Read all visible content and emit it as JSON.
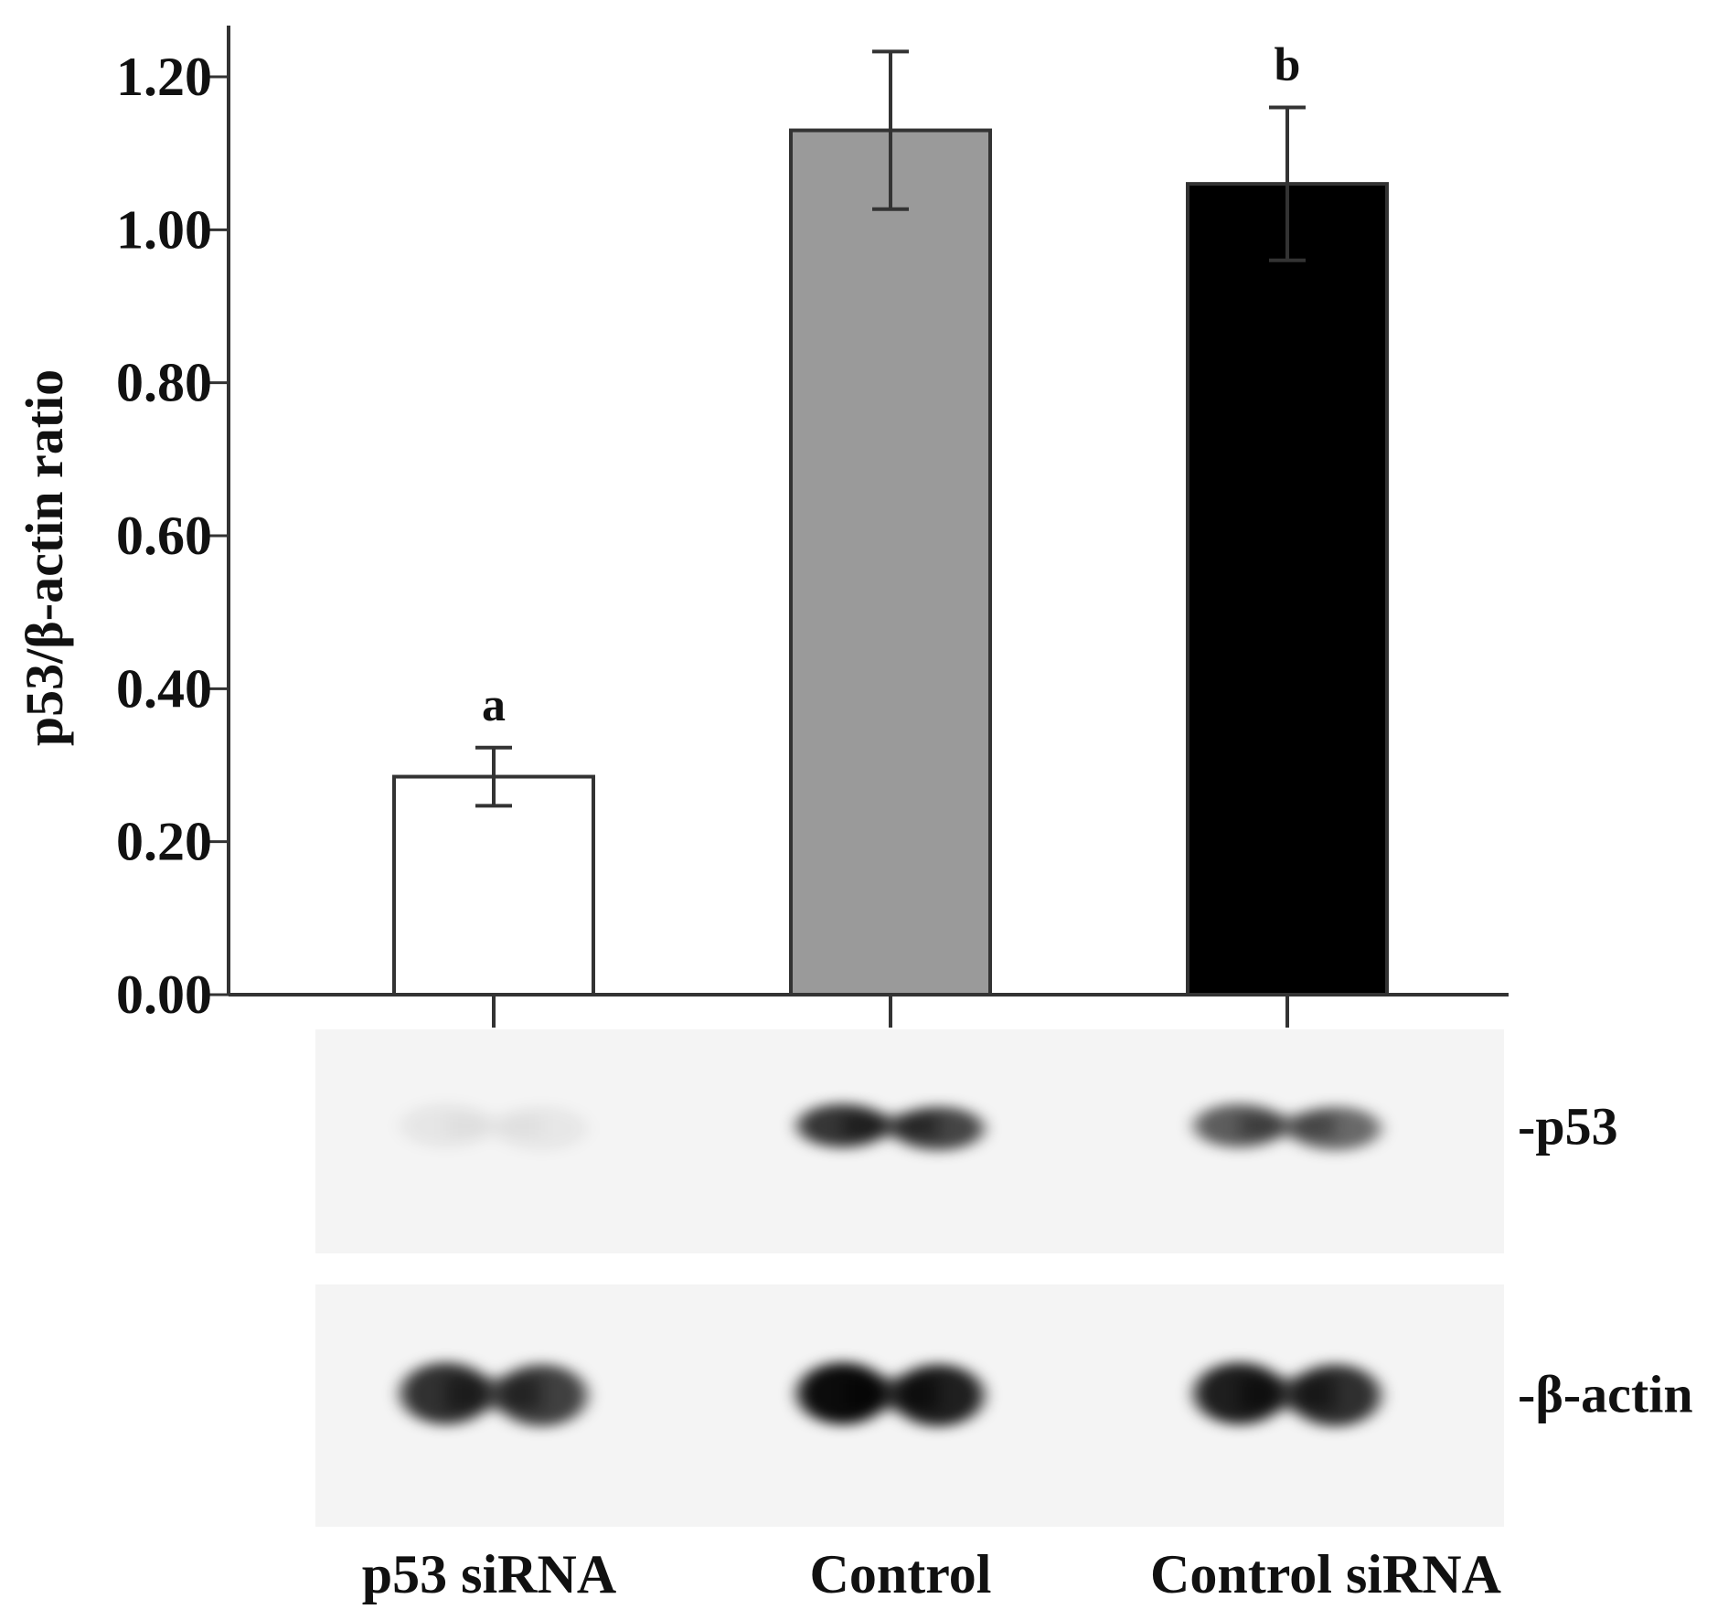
{
  "chart_data": {
    "type": "bar",
    "title": "",
    "xlabel": "",
    "ylabel": "p53/β-actin ratio",
    "ylim": [
      0,
      1.2
    ],
    "yticks": [
      "0.00",
      "0.20",
      "0.40",
      "0.60",
      "0.80",
      "1.00",
      "1.20"
    ],
    "categories": [
      "p53 siRNA",
      "Control",
      "Control siRNA"
    ],
    "values": [
      0.285,
      1.13,
      1.06
    ],
    "errors": [
      0.038,
      0.103,
      0.1
    ],
    "bar_colors": [
      "#ffffff",
      "#9a9a9a",
      "#000000"
    ],
    "annotations": [
      "a",
      "",
      "b"
    ],
    "grid": false,
    "legend": "none"
  },
  "blot": {
    "bands": [
      {
        "label": "-p53",
        "intensity": [
          0.06,
          0.78,
          0.62
        ]
      },
      {
        "label": "-β-actin",
        "intensity": [
          0.8,
          0.95,
          0.88
        ]
      }
    ]
  }
}
